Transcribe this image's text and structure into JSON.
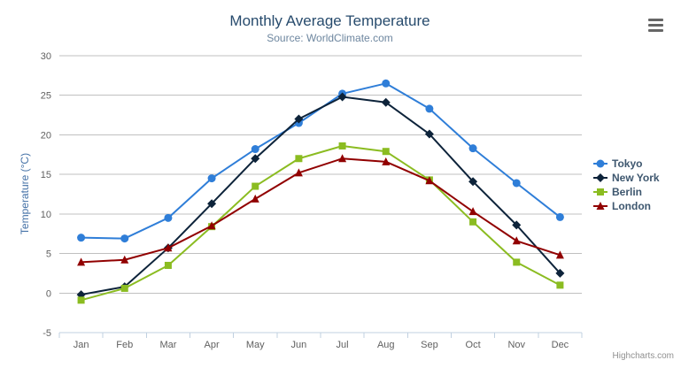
{
  "chart_data": {
    "type": "line",
    "title": "Monthly Average Temperature",
    "subtitle": "Source: WorldClimate.com",
    "xlabel": "",
    "ylabel": "Temperature (°C)",
    "categories": [
      "Jan",
      "Feb",
      "Mar",
      "Apr",
      "May",
      "Jun",
      "Jul",
      "Aug",
      "Sep",
      "Oct",
      "Nov",
      "Dec"
    ],
    "yticks": [
      -5,
      0,
      5,
      10,
      15,
      20,
      25,
      30
    ],
    "ylim": [
      -5,
      30
    ],
    "grid": true,
    "legend_position": "right-middle-vertical",
    "series": [
      {
        "name": "Tokyo",
        "color": "#2f7ed8",
        "marker": "circle",
        "values": [
          7.0,
          6.9,
          9.5,
          14.5,
          18.2,
          21.5,
          25.2,
          26.5,
          23.3,
          18.3,
          13.9,
          9.6
        ]
      },
      {
        "name": "New York",
        "color": "#0d233a",
        "marker": "diamond",
        "values": [
          -0.2,
          0.8,
          5.7,
          11.3,
          17.0,
          22.0,
          24.8,
          24.1,
          20.1,
          14.1,
          8.6,
          2.5
        ]
      },
      {
        "name": "Berlin",
        "color": "#8bbc21",
        "marker": "square",
        "values": [
          -0.9,
          0.6,
          3.5,
          8.4,
          13.5,
          17.0,
          18.6,
          17.9,
          14.3,
          9.0,
          3.9,
          1.0
        ]
      },
      {
        "name": "London",
        "color": "#910000",
        "marker": "triangle",
        "values": [
          3.9,
          4.2,
          5.7,
          8.5,
          11.9,
          15.2,
          17.0,
          16.6,
          14.2,
          10.3,
          6.6,
          4.8
        ]
      }
    ]
  },
  "credits": {
    "text": "Highcharts.com"
  },
  "colors": {
    "title": "#274b6d",
    "subtitle": "#6d869f",
    "y_axis_title": "#4572a7",
    "axis_labels": "#606060",
    "gridline": "#c0c0c0",
    "axis_line": "#c0d0e0",
    "legend_text": "#3e576f",
    "credits_text": "#909090",
    "burger_icon": "#666666",
    "background": "#ffffff"
  }
}
